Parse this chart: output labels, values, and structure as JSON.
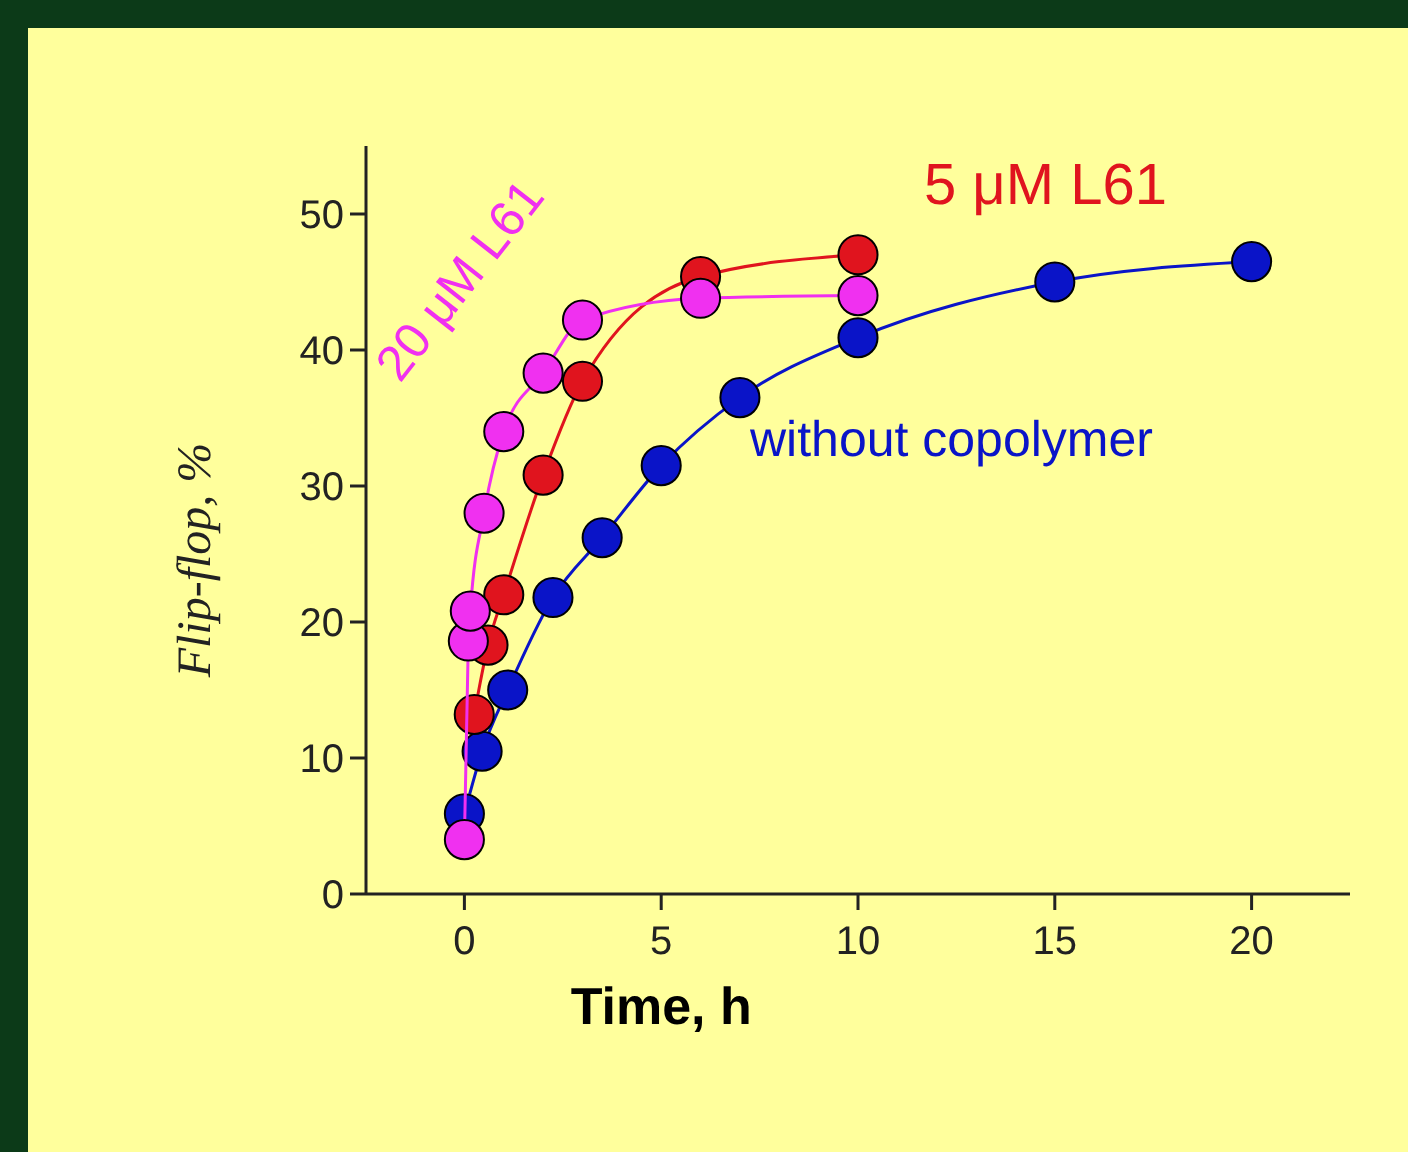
{
  "chart_data": {
    "type": "line",
    "xlabel": "Time, h",
    "ylabel": "Flip-flop, %",
    "xlim": [
      -2.5,
      22.5
    ],
    "ylim": [
      0,
      55
    ],
    "xticks": [
      0,
      5,
      10,
      15,
      20
    ],
    "yticks": [
      0,
      10,
      20,
      30,
      40,
      50
    ],
    "marker": "circle",
    "grid": false,
    "series": [
      {
        "name": "without copolymer",
        "color": "#0a14c8",
        "x": [
          0,
          0.45,
          1.1,
          2.25,
          3.5,
          5,
          7,
          10,
          15,
          20
        ],
        "values": [
          5.9,
          10.5,
          15,
          21.8,
          26.2,
          31.5,
          36.5,
          40.9,
          45,
          46.5
        ]
      },
      {
        "name": "5 μM L61",
        "color": "#e0141e",
        "x": [
          0.25,
          0.6,
          1,
          2,
          3,
          6,
          10
        ],
        "values": [
          13.2,
          18.3,
          22,
          30.8,
          37.7,
          45.4,
          47
        ]
      },
      {
        "name": "20 μM L61",
        "color": "#f030f0",
        "x": [
          0,
          0.1,
          0.15,
          0.5,
          1,
          2,
          3,
          6,
          10
        ],
        "values": [
          4,
          18.6,
          20.8,
          28,
          34,
          38.3,
          42.2,
          43.8,
          44
        ]
      }
    ]
  }
}
